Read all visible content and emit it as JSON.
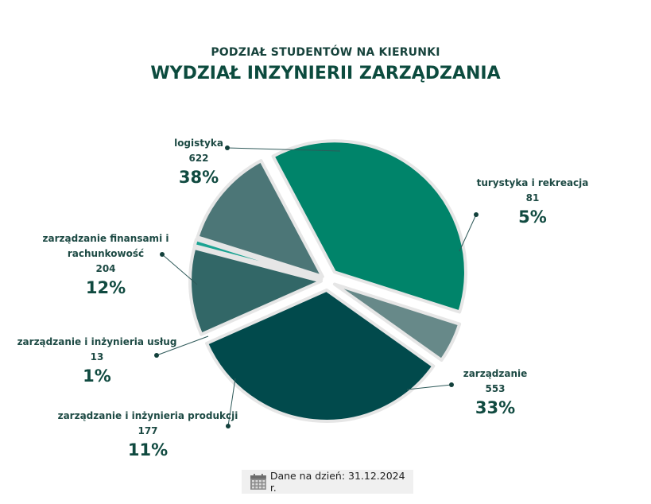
{
  "chart_data": {
    "type": "pie",
    "subtitle": "PODZIAŁ STUDENTÓW NA KIERUNKI",
    "title": "WYDZIAŁ INZYNIERII ZARZĄDZANIA",
    "slices": [
      {
        "label": "logistyka",
        "label_lines": [
          "logistyka"
        ],
        "value": 622,
        "percent": "38%",
        "color": "#00846a"
      },
      {
        "label": "turystyka i rekreacja",
        "label_lines": [
          "turystyka i rekreacja"
        ],
        "value": 81,
        "percent": "5%",
        "color": "#678989"
      },
      {
        "label": "zarządzanie",
        "label_lines": [
          "zarządzanie"
        ],
        "value": 553,
        "percent": "33%",
        "color": "#014a4c"
      },
      {
        "label": "zarządzanie i inżynieria produkcji",
        "label_lines": [
          "zarządzanie i inżynieria produkcji"
        ],
        "value": 177,
        "percent": "11%",
        "color": "#326767"
      },
      {
        "label": "zarządzanie i inżynieria usług",
        "label_lines": [
          "zarządzanie i inżynieria usług"
        ],
        "value": 13,
        "percent": "1%",
        "color": "#1ba392"
      },
      {
        "label": "zarządzanie finansami i rachunkowość",
        "label_lines": [
          "zarządzanie finansami i",
          "rachunkowość"
        ],
        "value": 204,
        "percent": "12%",
        "color": "#4c7677"
      }
    ],
    "legend": "none"
  },
  "footer": {
    "text": "Dane na dzień: 31.12.2024 r.",
    "icon": "calendar-icon"
  }
}
